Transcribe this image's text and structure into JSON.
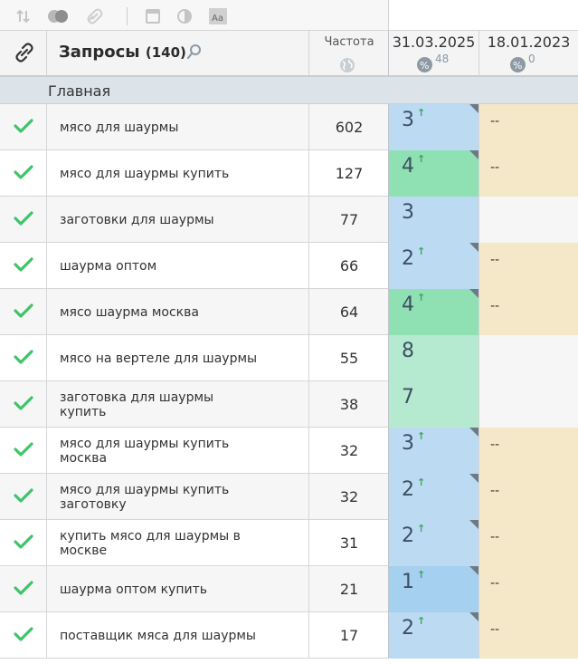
{
  "table": {
    "query_title": "Запросы",
    "query_count": "(140)",
    "freq_label": "Частота",
    "dates": [
      {
        "label": "31.03.2025",
        "pct_count": "48"
      },
      {
        "label": "18.01.2023",
        "pct_count": "0"
      }
    ],
    "group_name": "Главная",
    "rows": [
      {
        "query": "мясо для шаурмы",
        "freq": "602",
        "pos": "3",
        "up": true,
        "cell_color": "#bcdaf2",
        "corner": true,
        "prev": "--",
        "prev_color": "#f5e8c8"
      },
      {
        "query": "мясо для шаурмы купить",
        "freq": "127",
        "pos": "4",
        "up": true,
        "cell_color": "#8fe0b2",
        "corner": true,
        "prev": "--",
        "prev_color": "#f5e8c8"
      },
      {
        "query": "заготовки для шаурмы",
        "freq": "77",
        "pos": "3",
        "up": false,
        "cell_color": "#bcdaf2",
        "corner": false,
        "prev": "",
        "prev_color": "#f6f6f6"
      },
      {
        "query": "шаурма оптом",
        "freq": "66",
        "pos": "2",
        "up": true,
        "cell_color": "#bcdaf2",
        "corner": true,
        "prev": "--",
        "prev_color": "#f5e8c8"
      },
      {
        "query": "мясо шаурма москва",
        "freq": "64",
        "pos": "4",
        "up": true,
        "cell_color": "#8fe0b2",
        "corner": true,
        "prev": "--",
        "prev_color": "#f5e8c8"
      },
      {
        "query": "мясо на вертеле для шаурмы",
        "freq": "55",
        "pos": "8",
        "up": false,
        "cell_color": "#b5ead0",
        "corner": false,
        "prev": "",
        "prev_color": "#f6f6f6"
      },
      {
        "query": "заготовка для шаурмы купить",
        "freq": "38",
        "pos": "7",
        "up": false,
        "cell_color": "#b5ead0",
        "corner": false,
        "prev": "",
        "prev_color": "#f6f6f6"
      },
      {
        "query": "мясо для шаурмы купить москва",
        "freq": "32",
        "pos": "3",
        "up": true,
        "cell_color": "#bcdaf2",
        "corner": true,
        "prev": "--",
        "prev_color": "#f5e8c8"
      },
      {
        "query": "мясо для шаурмы купить заготовку",
        "freq": "32",
        "pos": "2",
        "up": true,
        "cell_color": "#bcdaf2",
        "corner": true,
        "prev": "--",
        "prev_color": "#f5e8c8"
      },
      {
        "query": "купить мясо для шаурмы в москве",
        "freq": "31",
        "pos": "2",
        "up": true,
        "cell_color": "#bcdaf2",
        "corner": true,
        "prev": "--",
        "prev_color": "#f5e8c8"
      },
      {
        "query": "шаурма оптом купить",
        "freq": "21",
        "pos": "1",
        "up": true,
        "cell_color": "#a6d0ef",
        "corner": true,
        "prev": "--",
        "prev_color": "#f5e8c8"
      },
      {
        "query": "поставщик мяса для шаурмы",
        "freq": "17",
        "pos": "2",
        "up": true,
        "cell_color": "#bcdaf2",
        "corner": true,
        "prev": "--",
        "prev_color": "#f5e8c8"
      }
    ]
  },
  "icons": {
    "sort": "sort-icon",
    "toggle": "toggle-icon",
    "link": "link-icon",
    "calendar": "calendar-icon",
    "contrast": "contrast-icon",
    "font": "font-icon",
    "check": "check-icon",
    "globe": "globe-icon",
    "percent": "percent-icon"
  },
  "colors": {
    "check": "#3fc46a",
    "up_arrow": "#3aa65a"
  }
}
